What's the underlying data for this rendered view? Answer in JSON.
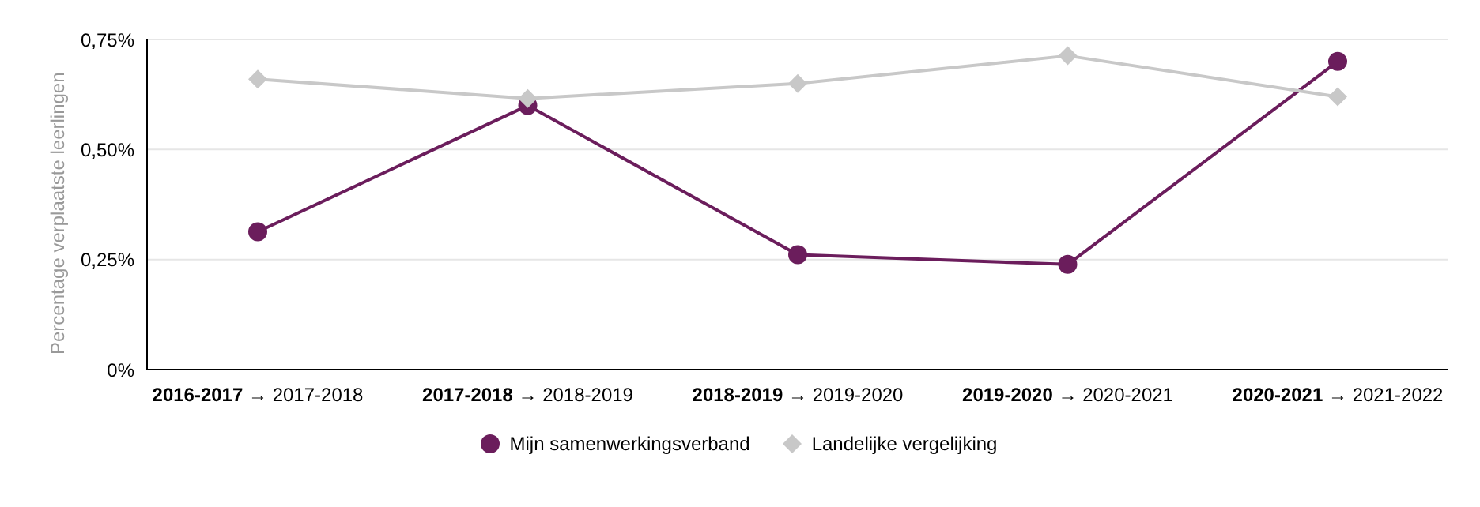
{
  "chart_data": {
    "type": "line",
    "ylabel": "Percentage verplaatste leerlingen",
    "categories": [
      "2016-2017 → 2017-2018",
      "2017-2018 → 2018-2019",
      "2018-2019 → 2019-2020",
      "2019-2020 → 2020-2021",
      "2020-2021 → 2021-2022"
    ],
    "series": [
      {
        "name": "Mijn samenwerkingsverband",
        "color": "#6b1d5c",
        "marker": "circle",
        "values": [
          0.313,
          0.6,
          0.261,
          0.239,
          0.7
        ]
      },
      {
        "name": "Landelijke vergelijking",
        "color": "#c8c8c8",
        "marker": "diamond",
        "values": [
          0.66,
          0.616,
          0.65,
          0.713,
          0.62
        ]
      }
    ],
    "ylim": [
      0,
      0.75
    ],
    "yticks": [
      {
        "value": 0,
        "label": "0%"
      },
      {
        "value": 0.25,
        "label": "0,25%"
      },
      {
        "value": 0.5,
        "label": "0,50%"
      },
      {
        "value": 0.75,
        "label": "0,75%"
      }
    ],
    "grid": "y",
    "legend": "bottom",
    "line_style": "solid"
  }
}
